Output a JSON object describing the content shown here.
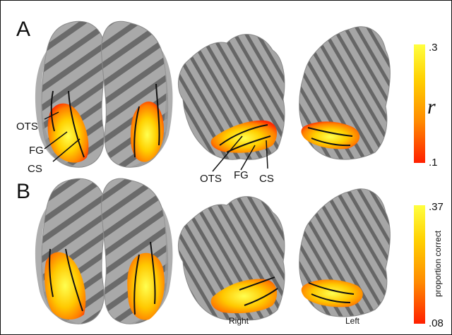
{
  "panels": [
    {
      "letter": "A",
      "labels": {
        "ots": "OTS",
        "fg": "FG",
        "cs": "CS"
      },
      "colorbar": {
        "top": ".3",
        "bottom": ".1",
        "axis_label": "r"
      }
    },
    {
      "letter": "B",
      "colorbar": {
        "top": ".37",
        "bottom": ".08",
        "axis_label": "proportion correct"
      }
    }
  ],
  "hemisphere_labels": {
    "right": "Right",
    "left": "Left"
  },
  "colors": {
    "cortex_light": "#a8a8a8",
    "cortex_dark": "#6b6b6b",
    "heat_low": "#ff2000",
    "heat_high": "#ffff40"
  }
}
